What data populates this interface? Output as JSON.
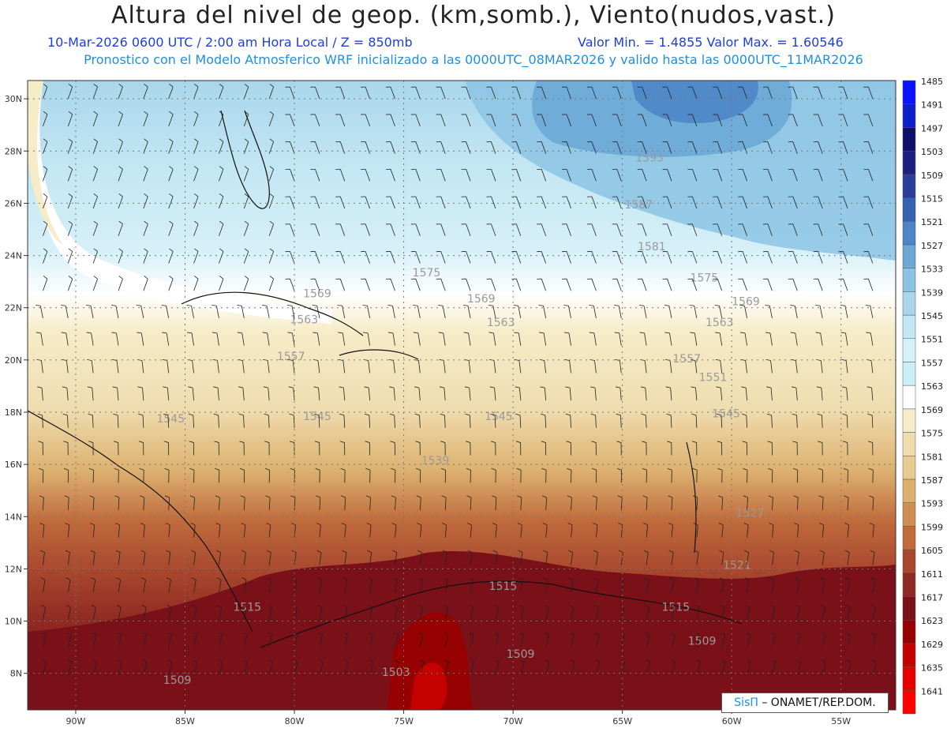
{
  "title": "Altura del nivel de geop. (km,somb.), Viento(nudos,vast.)",
  "subtitle_left": "10-Mar-2026  0600 UTC / 2:00 am Hora Local / Z = 850mb",
  "subtitle_right": "Valor Min. = 1.4855   Valor Max. = 1.60546",
  "subtitle_line2": "Pronostico con el Modelo Atmosferico WRF inicializado a las 0000UTC_08MAR2026 y valido hasta las  0000UTC_11MAR2026",
  "credit": {
    "brand": "SisΠ",
    "text": " – ONAMET/REP.DOM."
  },
  "lat_labels": [
    "30N",
    "28N",
    "26N",
    "24N",
    "22N",
    "20N",
    "18N",
    "16N",
    "14N",
    "12N",
    "10N",
    "8N"
  ],
  "lon_labels": [
    "90W",
    "85W",
    "80W",
    "75W",
    "70W",
    "65W",
    "60W",
    "55W"
  ],
  "colorbar": {
    "levels": [
      "1485",
      "1491",
      "1497",
      "1503",
      "1509",
      "1515",
      "1521",
      "1527",
      "1533",
      "1539",
      "1545",
      "1551",
      "1557",
      "1563",
      "1569",
      "1575",
      "1581",
      "1587",
      "1593",
      "1599",
      "1605",
      "1611",
      "1617",
      "1623",
      "1629",
      "1635",
      "1641"
    ],
    "colors": [
      "#ff0000",
      "#e80000",
      "#c40000",
      "#960000",
      "#7a1018",
      "#8e2a22",
      "#a8472e",
      "#bf6b3c",
      "#cf8f52",
      "#ddb170",
      "#e7cc92",
      "#efddb0",
      "#f6ecc8",
      "#ffffff",
      "#c8f0f6",
      "#d6f0f8",
      "#c3e7f3",
      "#a9d6ec",
      "#8cc4e4",
      "#6da8d6",
      "#4d86c6",
      "#3563b2",
      "#2a3f99",
      "#1c1f80",
      "#0f0f6a",
      "#0b1fc8",
      "#0a12ff"
    ]
  },
  "contour_labels": [
    {
      "text": "1593",
      "lon": -64.4,
      "lat": 27.6
    },
    {
      "text": "1587",
      "lon": -64.9,
      "lat": 25.8
    },
    {
      "text": "1581",
      "lon": -64.3,
      "lat": 24.2
    },
    {
      "text": "1575",
      "lon": -74.6,
      "lat": 23.2
    },
    {
      "text": "1575",
      "lon": -61.9,
      "lat": 23.0
    },
    {
      "text": "1569",
      "lon": -79.6,
      "lat": 22.4
    },
    {
      "text": "1569",
      "lon": -72.1,
      "lat": 22.2
    },
    {
      "text": "1569",
      "lon": -60.0,
      "lat": 22.1
    },
    {
      "text": "1563",
      "lon": -80.2,
      "lat": 21.4
    },
    {
      "text": "1563",
      "lon": -71.2,
      "lat": 21.3
    },
    {
      "text": "1563",
      "lon": -61.2,
      "lat": 21.3
    },
    {
      "text": "1557",
      "lon": -80.8,
      "lat": 20.0
    },
    {
      "text": "1557",
      "lon": -62.7,
      "lat": 19.9
    },
    {
      "text": "1551",
      "lon": -61.5,
      "lat": 19.2
    },
    {
      "text": "1545",
      "lon": -86.3,
      "lat": 17.6
    },
    {
      "text": "1545",
      "lon": -79.6,
      "lat": 17.7
    },
    {
      "text": "1545",
      "lon": -71.3,
      "lat": 17.7
    },
    {
      "text": "1545",
      "lon": -60.9,
      "lat": 17.8
    },
    {
      "text": "1539",
      "lon": -74.2,
      "lat": 16.0
    },
    {
      "text": "1527",
      "lon": -59.8,
      "lat": 14.0
    },
    {
      "text": "1521",
      "lon": -60.4,
      "lat": 12.0
    },
    {
      "text": "1515",
      "lon": -71.1,
      "lat": 11.2
    },
    {
      "text": "1515",
      "lon": -82.8,
      "lat": 10.4
    },
    {
      "text": "1515",
      "lon": -63.2,
      "lat": 10.4
    },
    {
      "text": "1509",
      "lon": -70.3,
      "lat": 8.6
    },
    {
      "text": "1509",
      "lon": -62.0,
      "lat": 9.1
    },
    {
      "text": "1509",
      "lon": -86.0,
      "lat": 7.6
    },
    {
      "text": "1503",
      "lon": -76.0,
      "lat": 7.9
    }
  ]
}
